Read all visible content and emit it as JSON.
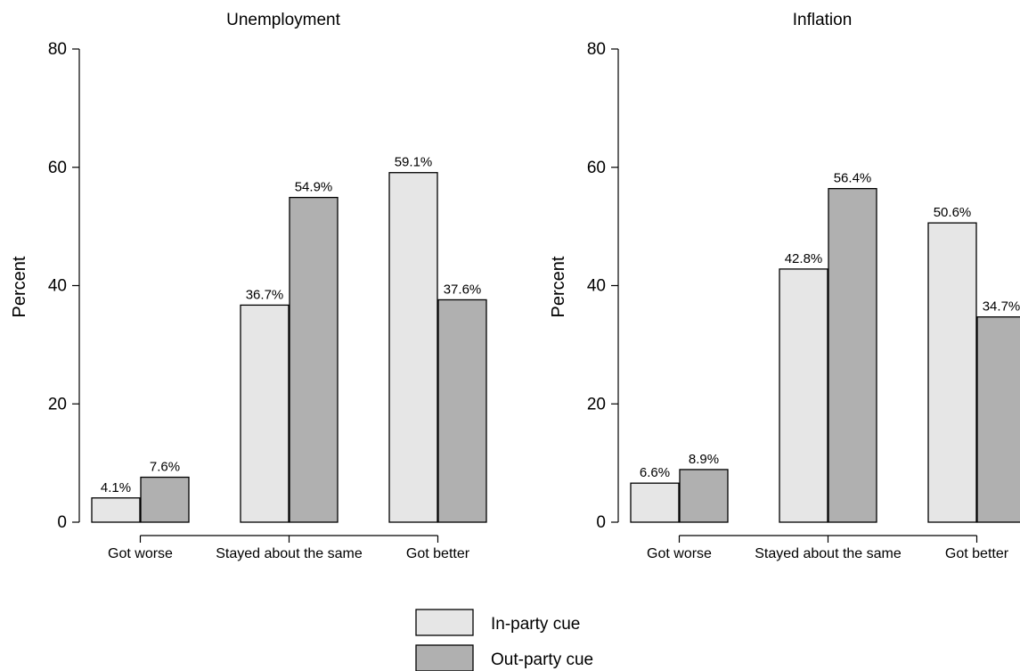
{
  "chart_data": [
    {
      "type": "bar",
      "title": "Unemployment",
      "ylabel": "Percent",
      "xlabel": "",
      "ylim": [
        0,
        80
      ],
      "yticks": [
        "0",
        "20",
        "40",
        "60",
        "80"
      ],
      "categories": [
        "Got worse",
        "Stayed about the same",
        "Got better"
      ],
      "series": [
        {
          "name": "In-party cue",
          "values": [
            4.1,
            36.7,
            59.1
          ],
          "labels": [
            "4.1%",
            "36.7%",
            "59.1%"
          ]
        },
        {
          "name": "Out-party cue",
          "values": [
            7.6,
            54.9,
            37.6
          ],
          "labels": [
            "7.6%",
            "54.9%",
            "37.6%"
          ]
        }
      ]
    },
    {
      "type": "bar",
      "title": "Inflation",
      "ylabel": "Percent",
      "xlabel": "",
      "ylim": [
        0,
        80
      ],
      "yticks": [
        "0",
        "20",
        "40",
        "60",
        "80"
      ],
      "categories": [
        "Got worse",
        "Stayed about the same",
        "Got better"
      ],
      "series": [
        {
          "name": "In-party cue",
          "values": [
            6.6,
            42.8,
            50.6
          ],
          "labels": [
            "6.6%",
            "42.8%",
            "50.6%"
          ]
        },
        {
          "name": "Out-party cue",
          "values": [
            8.9,
            56.4,
            34.7
          ],
          "labels": [
            "8.9%",
            "56.4%",
            "34.7%"
          ]
        }
      ]
    }
  ],
  "legend": {
    "position": "bottom-center",
    "items": [
      {
        "label": "In-party cue",
        "color": "#e6e6e6"
      },
      {
        "label": "Out-party cue",
        "color": "#b0b0b0"
      }
    ]
  },
  "colors": {
    "in_party": "#e6e6e6",
    "out_party": "#b0b0b0",
    "axis": "#000000"
  }
}
